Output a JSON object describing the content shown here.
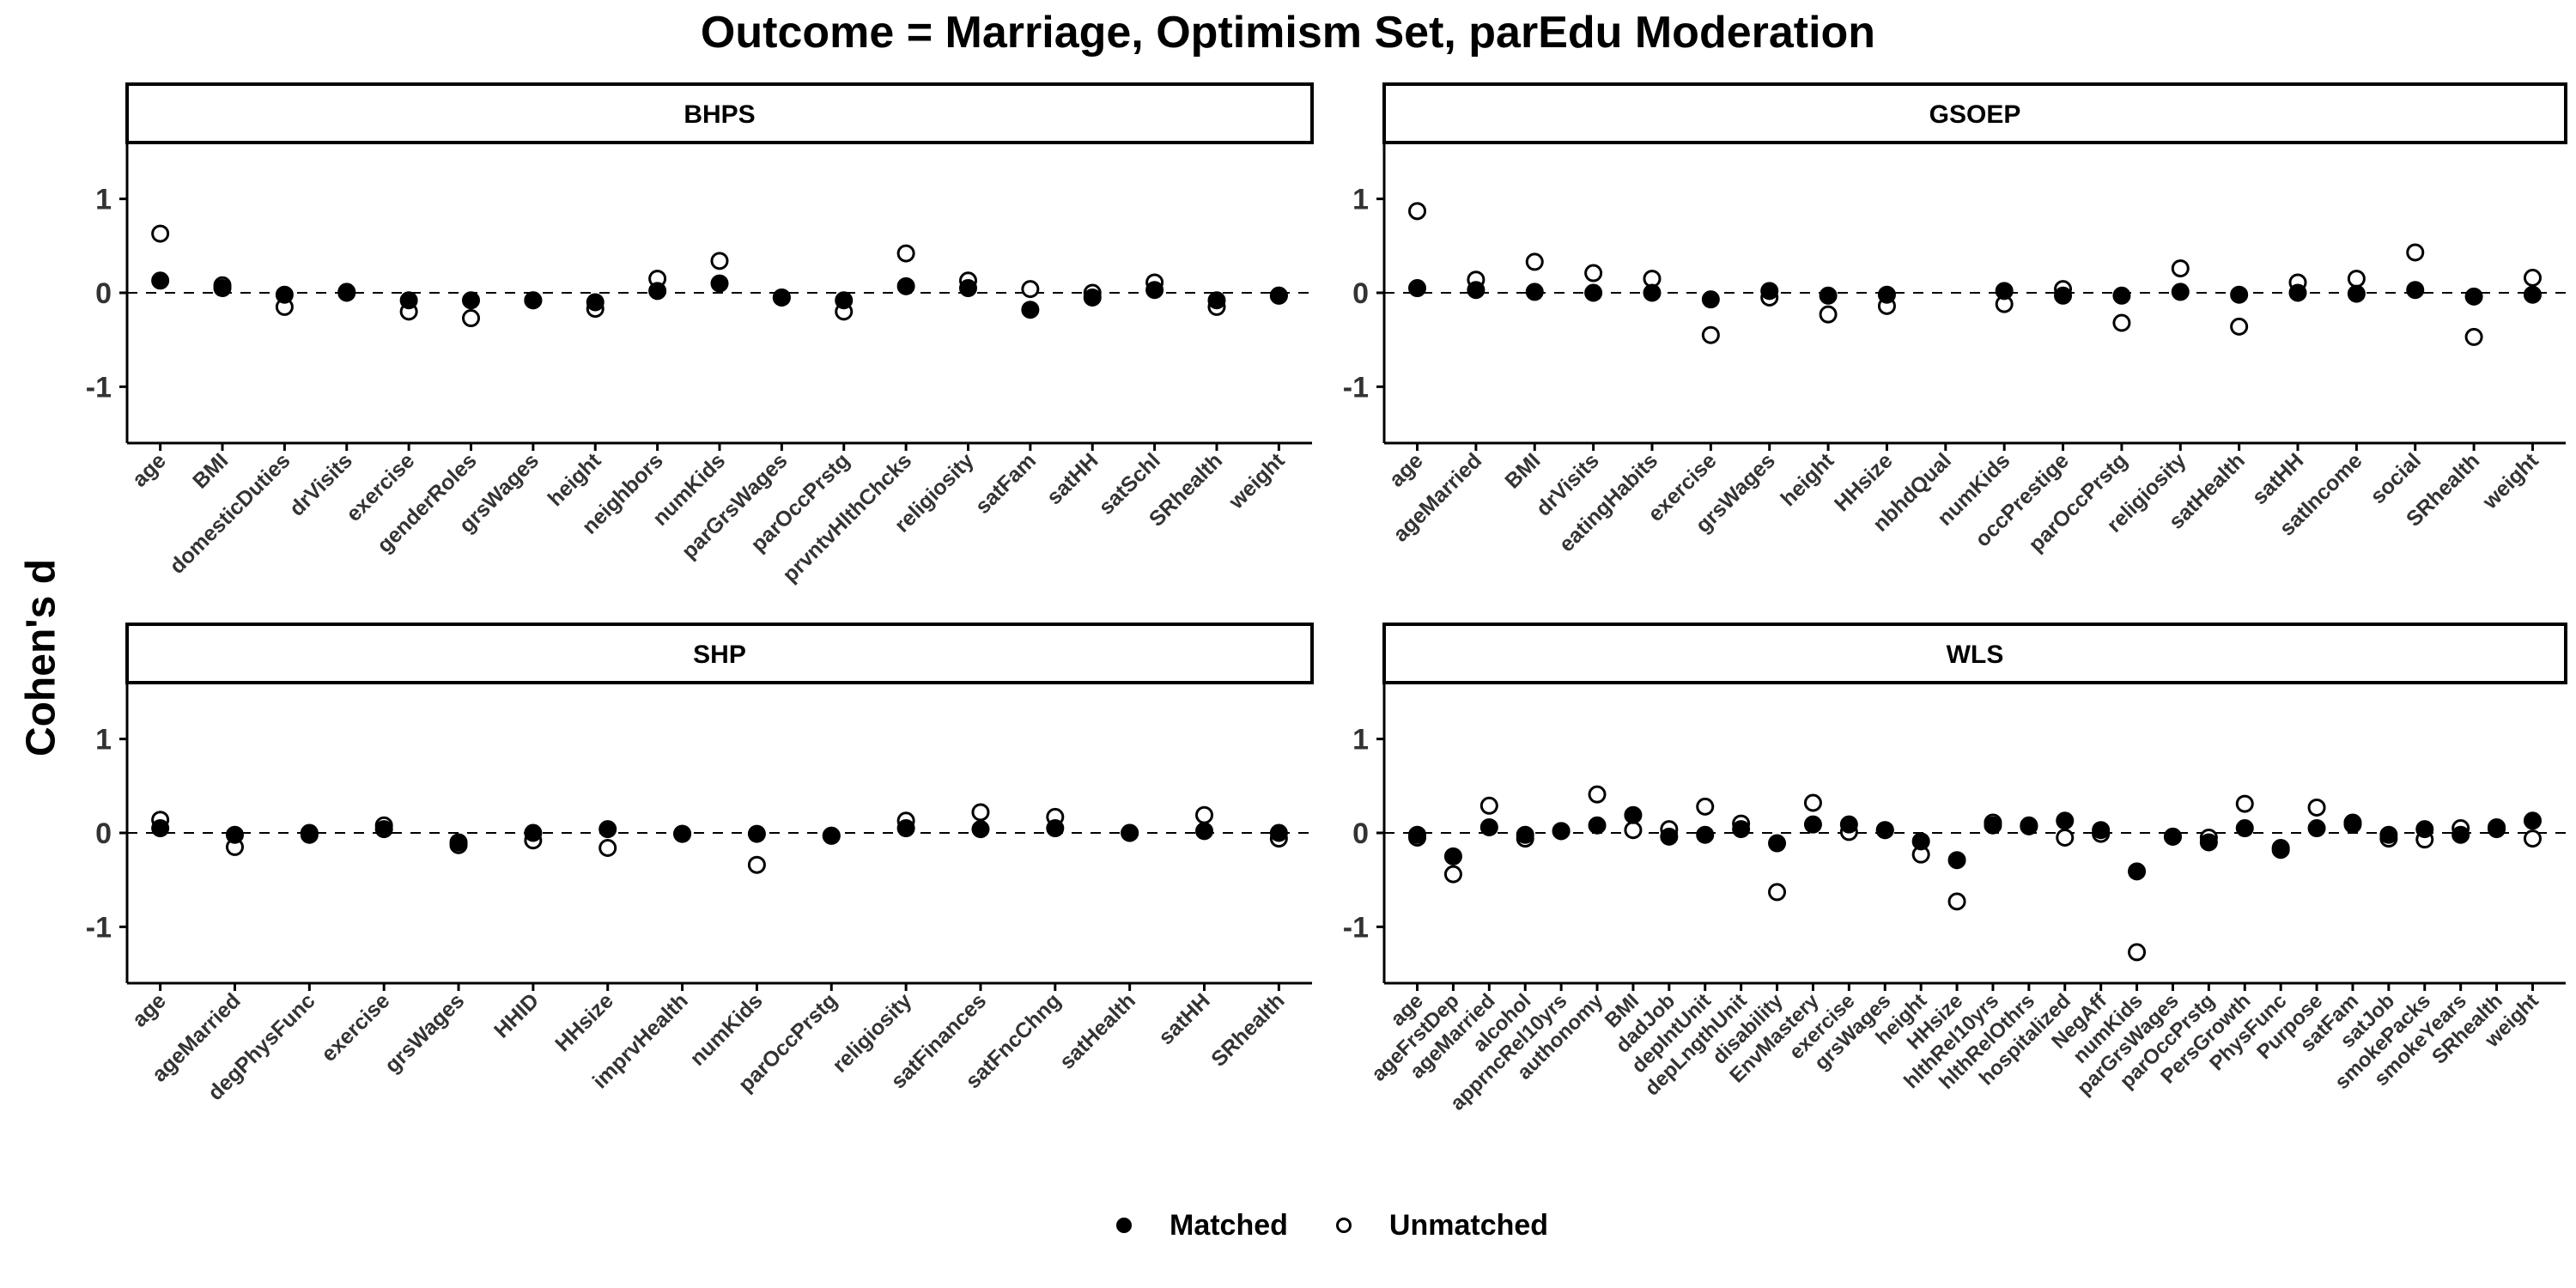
{
  "title": "Outcome = Marriage, Optimism Set, parEdu Moderation",
  "ylabel": "Cohen's d",
  "legend": {
    "items": [
      {
        "label": "Matched",
        "style": "filled"
      },
      {
        "label": "Unmatched",
        "style": "open"
      }
    ],
    "placement": "bottom"
  },
  "colors": {
    "points": "#000000",
    "background": "#ffffff",
    "strip": "#ffffff"
  },
  "chart_data": [
    {
      "type": "scatter",
      "panel": "BHPS",
      "ylim": [
        -1.6,
        1.6
      ],
      "yticks": [
        -1,
        0,
        1
      ],
      "reference_line": 0,
      "grid": false,
      "categories": [
        "age",
        "BMI",
        "domesticDuties",
        "drVisits",
        "exercise",
        "genderRoles",
        "grsWages",
        "height",
        "neighbors",
        "numKids",
        "parGrsWages",
        "parOccPrstg",
        "prvntvHlthChcks",
        "religiosity",
        "satFam",
        "satHH",
        "satSchl",
        "SRhealth",
        "weight"
      ],
      "series": [
        {
          "name": "Matched",
          "values": [
            0.13,
            0.05,
            -0.02,
            0.01,
            -0.08,
            -0.08,
            -0.08,
            -0.1,
            0.02,
            0.1,
            -0.05,
            -0.08,
            0.07,
            0.05,
            -0.18,
            -0.05,
            0.03,
            -0.08,
            -0.03
          ]
        },
        {
          "name": "Unmatched",
          "values": [
            0.63,
            0.08,
            -0.15,
            0.0,
            -0.2,
            -0.27,
            -0.08,
            -0.17,
            0.15,
            0.34,
            -0.05,
            -0.2,
            0.42,
            0.13,
            0.04,
            0.0,
            0.11,
            -0.15,
            -0.03
          ]
        }
      ]
    },
    {
      "type": "scatter",
      "panel": "GSOEP",
      "ylim": [
        -1.6,
        1.6
      ],
      "yticks": [
        -1,
        0,
        1
      ],
      "reference_line": 0,
      "grid": false,
      "categories": [
        "age",
        "ageMarried",
        "BMI",
        "drVisits",
        "eatingHabits",
        "exercise",
        "grsWages",
        "height",
        "HHsize",
        "nbhdQual",
        "numKids",
        "occPrestige",
        "parOccPrstg",
        "religiosity",
        "satHealth",
        "satHH",
        "satIncome",
        "social",
        "SRhealth",
        "weight"
      ],
      "series": [
        {
          "name": "Matched",
          "values": [
            0.05,
            0.03,
            0.01,
            0.0,
            0.0,
            -0.07,
            0.02,
            -0.03,
            -0.02,
            null,
            0.02,
            -0.03,
            -0.03,
            0.01,
            -0.02,
            0.0,
            -0.01,
            0.03,
            -0.04,
            -0.02
          ]
        },
        {
          "name": "Unmatched",
          "values": [
            0.87,
            0.14,
            0.33,
            0.21,
            0.15,
            -0.45,
            -0.05,
            -0.23,
            -0.14,
            null,
            -0.12,
            0.04,
            -0.32,
            0.26,
            -0.36,
            0.11,
            0.15,
            0.43,
            -0.47,
            0.16
          ]
        }
      ]
    },
    {
      "type": "scatter",
      "panel": "SHP",
      "ylim": [
        -1.6,
        1.6
      ],
      "yticks": [
        -1,
        0,
        1
      ],
      "reference_line": 0,
      "grid": false,
      "categories": [
        "age",
        "ageMarried",
        "degPhysFunc",
        "exercise",
        "grsWages",
        "HHID",
        "HHsize",
        "imprvHealth",
        "numKids",
        "parOccPrstg",
        "religiosity",
        "satFinances",
        "satFncChng",
        "satHealth",
        "satHH",
        "SRhealth"
      ],
      "series": [
        {
          "name": "Matched",
          "values": [
            0.05,
            -0.02,
            -0.02,
            0.04,
            -0.1,
            0.0,
            0.04,
            -0.01,
            -0.01,
            -0.03,
            0.05,
            0.04,
            0.05,
            0.0,
            0.02,
            0.0
          ]
        },
        {
          "name": "Unmatched",
          "values": [
            0.14,
            -0.15,
            0.0,
            0.08,
            -0.13,
            -0.08,
            -0.16,
            -0.01,
            -0.34,
            -0.03,
            0.13,
            0.22,
            0.17,
            0.0,
            0.19,
            -0.06
          ]
        }
      ]
    },
    {
      "type": "scatter",
      "panel": "WLS",
      "ylim": [
        -1.6,
        1.6
      ],
      "yticks": [
        -1,
        0,
        1
      ],
      "reference_line": 0,
      "grid": false,
      "categories": [
        "age",
        "ageFrstDep",
        "ageMarried",
        "alcohol",
        "apprncRel10yrs",
        "authonomy",
        "BMI",
        "dadJob",
        "depIntUnit",
        "depLngthUnit",
        "disability",
        "EnvMastery",
        "exercise",
        "grsWages",
        "height",
        "HHsize",
        "hlthRel10yrs",
        "hlthRelOthrs",
        "hospitalized",
        "NegAff",
        "numKids",
        "parGrsWages",
        "parOccPrstg",
        "PersGrowth",
        "PhysFunc",
        "Purpose",
        "satFam",
        "satJob",
        "smokePacks",
        "smokeYears",
        "SRhealth",
        "weight"
      ],
      "series": [
        {
          "name": "Matched",
          "values": [
            -0.02,
            -0.25,
            0.06,
            -0.02,
            0.02,
            0.08,
            0.19,
            -0.04,
            -0.02,
            0.04,
            -0.11,
            0.09,
            0.09,
            0.03,
            -0.09,
            -0.29,
            0.08,
            0.08,
            0.13,
            0.03,
            -0.41,
            -0.04,
            -0.1,
            0.05,
            -0.18,
            0.05,
            0.11,
            -0.02,
            0.04,
            -0.02,
            0.06,
            0.13
          ]
        },
        {
          "name": "Unmatched",
          "values": [
            -0.05,
            -0.44,
            0.29,
            -0.06,
            0.02,
            0.41,
            0.03,
            0.04,
            0.28,
            0.1,
            -0.63,
            0.32,
            0.01,
            0.03,
            -0.23,
            -0.73,
            0.11,
            0.07,
            -0.05,
            -0.01,
            -1.27,
            -0.04,
            -0.05,
            0.31,
            -0.16,
            0.27,
            0.09,
            -0.06,
            -0.07,
            0.05,
            0.04,
            -0.06
          ]
        }
      ]
    }
  ]
}
